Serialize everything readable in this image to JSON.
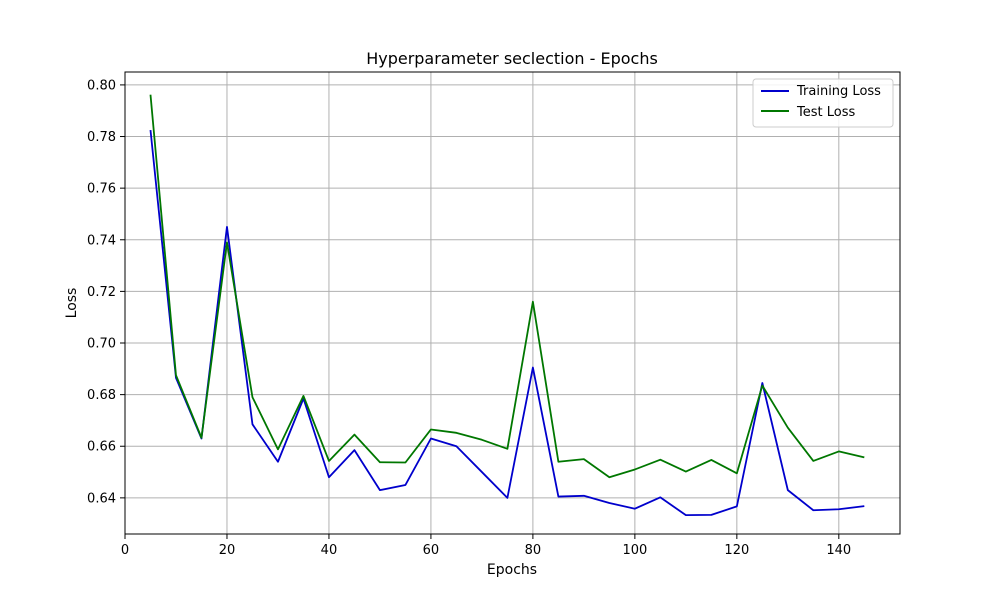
{
  "chart_data": {
    "type": "line",
    "title": "Hyperparameter seclection - Epochs",
    "xlabel": "Epochs",
    "ylabel": "Loss",
    "xlim": [
      0,
      152
    ],
    "ylim": [
      0.626,
      0.805
    ],
    "xticks": [
      "0",
      "20",
      "40",
      "60",
      "80",
      "100",
      "120",
      "140"
    ],
    "xtick_values": [
      0,
      20,
      40,
      60,
      80,
      100,
      120,
      140
    ],
    "yticks": [
      "0.64",
      "0.66",
      "0.68",
      "0.70",
      "0.72",
      "0.74",
      "0.76",
      "0.78",
      "0.80"
    ],
    "ytick_values": [
      0.64,
      0.66,
      0.68,
      0.7,
      0.72,
      0.74,
      0.76,
      0.78,
      0.8
    ],
    "grid": true,
    "legend_position": "top-right",
    "x": [
      5,
      10,
      15,
      20,
      25,
      30,
      35,
      40,
      45,
      50,
      55,
      60,
      65,
      70,
      75,
      80,
      85,
      90,
      95,
      100,
      105,
      110,
      115,
      120,
      125,
      130,
      135,
      140,
      145
    ],
    "series": [
      {
        "name": "Training Loss",
        "color": "#0000cc",
        "values": [
          0.7825,
          0.6865,
          0.663,
          0.745,
          0.6685,
          0.654,
          0.6785,
          0.648,
          0.6585,
          0.643,
          0.645,
          0.663,
          0.66,
          0.65,
          0.64,
          0.6905,
          0.6405,
          0.6408,
          0.638,
          0.6358,
          0.6402,
          0.6333,
          0.6334,
          0.6367,
          0.6845,
          0.643,
          0.6352,
          0.6356,
          0.6368
        ]
      },
      {
        "name": "Test Loss",
        "color": "#007700",
        "values": [
          0.7962,
          0.6875,
          0.6633,
          0.739,
          0.679,
          0.6588,
          0.6795,
          0.6543,
          0.6645,
          0.6538,
          0.6537,
          0.6665,
          0.6652,
          0.6625,
          0.659,
          0.716,
          0.654,
          0.655,
          0.648,
          0.651,
          0.6548,
          0.6502,
          0.6547,
          0.6495,
          0.6835,
          0.6672,
          0.6543,
          0.658,
          0.6557
        ]
      }
    ]
  }
}
